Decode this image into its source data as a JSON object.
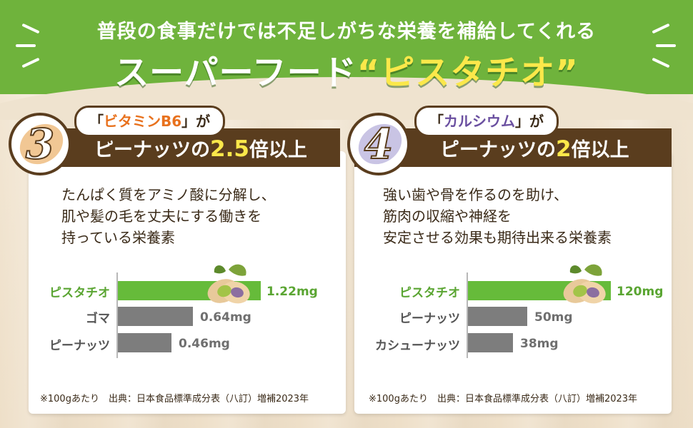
{
  "header": {
    "line1": "普段の食事だけでは不足しがちな栄養を補給してくれる",
    "line2_prefix": "スーパーフード",
    "line2_highlight": "“ピスタチオ”"
  },
  "colors": {
    "header_green": "#6fb33c",
    "brown": "#5a3d1e",
    "highlight_yellow": "#fbe84a",
    "bar_green": "#66bb3a",
    "bar_gray": "#7d7d7d",
    "nutrient_orange": "#e8711d",
    "nutrient_purple": "#6a4fa0"
  },
  "card3": {
    "number": "3",
    "bubble_open": "「",
    "nutrient": "ビタミンB6",
    "bubble_close": "」が",
    "heading_prefix": "ピーナッツの",
    "heading_number": "2.5",
    "heading_suffix": "倍以上",
    "description": [
      "たんぱく質をアミノ酸に分解し、",
      "肌や髪の毛を丈夫にする働きを",
      "持っている栄養素"
    ],
    "chart": {
      "rows": [
        {
          "label": "ピスタチオ",
          "value": "1.22mg",
          "amount": 1.22,
          "highlight": true
        },
        {
          "label": "ゴマ",
          "value": "0.64mg",
          "amount": 0.64,
          "highlight": false
        },
        {
          "label": "ピーナッツ",
          "value": "0.46mg",
          "amount": 0.46,
          "highlight": false
        }
      ]
    },
    "source": "※100gあたり　出典：日本食品標準成分表（八訂）増補2023年"
  },
  "card4": {
    "number": "4",
    "bubble_open": "「",
    "nutrient": "カルシウム",
    "bubble_close": "」が",
    "heading_prefix": "ピーナッツの",
    "heading_number": "2",
    "heading_suffix": "倍以上",
    "description": [
      "強い歯や骨を作るのを助け、",
      "筋肉の収縮や神経を",
      "安定させる効果も期待出来る栄養素"
    ],
    "chart": {
      "rows": [
        {
          "label": "ピスタチオ",
          "value": "120mg",
          "amount": 120,
          "highlight": true
        },
        {
          "label": "ピーナッツ",
          "value": "50mg",
          "amount": 50,
          "highlight": false
        },
        {
          "label": "カシューナッツ",
          "value": "38mg",
          "amount": 38,
          "highlight": false
        }
      ]
    },
    "source": "※100gあたり　出典：日本食品標準成分表（八訂）増補2023年"
  }
}
